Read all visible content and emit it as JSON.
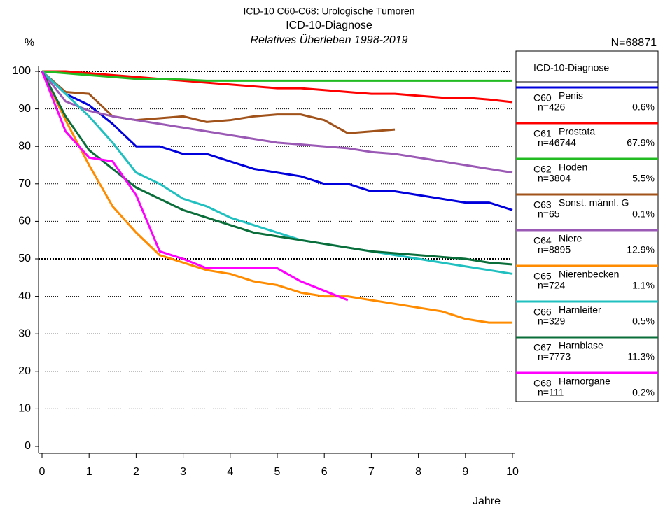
{
  "chart_data": {
    "type": "line",
    "title": "ICD-10 C60-C68: Urologische Tumoren",
    "subtitle": "ICD-10-Diagnose",
    "subtitle2": "Relatives Überleben 1998-2019",
    "ylabel": "%",
    "xlabel": "Jahre",
    "total": "N=68871",
    "legend_title": "ICD-10-Diagnose",
    "x": [
      0,
      0.5,
      1,
      1.5,
      2,
      2.5,
      3,
      3.5,
      4,
      4.5,
      5,
      5.5,
      6,
      6.5,
      7,
      7.5,
      8,
      8.5,
      9,
      9.5,
      10
    ],
    "xlim": [
      0,
      10
    ],
    "xticks": [
      0,
      1,
      2,
      3,
      4,
      5,
      6,
      7,
      8,
      9,
      10
    ],
    "ylim": [
      0,
      100
    ],
    "yticks": [
      0,
      10,
      20,
      30,
      40,
      50,
      60,
      70,
      80,
      90,
      100
    ],
    "grid": true,
    "series": [
      {
        "code": "C60",
        "name": "Penis",
        "n": "n=426",
        "share": "0.6%",
        "color": "#0000dd",
        "values": [
          100,
          94,
          91,
          86,
          80,
          80,
          78,
          78,
          76,
          74,
          73,
          72,
          70,
          70,
          68,
          68,
          67,
          66,
          65,
          65,
          63
        ]
      },
      {
        "code": "C61",
        "name": "Prostata",
        "n": "n=46744",
        "share": "67.9%",
        "color": "#ff0000",
        "values": [
          100,
          100,
          99.5,
          99,
          98.5,
          98,
          97.5,
          97,
          96.5,
          96,
          95.5,
          95.5,
          95,
          94.5,
          94,
          94,
          93.5,
          93,
          93,
          92.5,
          91.8
        ]
      },
      {
        "code": "C62",
        "name": "Hoden",
        "n": "n=3804",
        "share": "5.5%",
        "color": "#22bb22",
        "values": [
          100,
          99.5,
          99,
          98.5,
          98,
          98,
          97.8,
          97.5,
          97.5,
          97.5,
          97.5,
          97.5,
          97.5,
          97.5,
          97.5,
          97.5,
          97.5,
          97.5,
          97.5,
          97.5,
          97.5
        ]
      },
      {
        "code": "C63",
        "name": "Sonst. männl. G",
        "n": "n=65",
        "share": "0.1%",
        "color": "#a0521a",
        "values": [
          100,
          94.5,
          94,
          88,
          87,
          87.5,
          88,
          86.5,
          87,
          88,
          88.5,
          88.5,
          87,
          83.5,
          84,
          84.5,
          null,
          null,
          null,
          null,
          null
        ]
      },
      {
        "code": "C64",
        "name": "Niere",
        "n": "n=8895",
        "share": "12.9%",
        "color": "#9b59b6",
        "values": [
          100,
          92,
          89.5,
          88,
          87,
          86,
          85,
          84,
          83,
          82,
          81,
          80.5,
          80,
          79.5,
          78.5,
          78,
          77,
          76,
          75,
          74,
          73
        ]
      },
      {
        "code": "C65",
        "name": "Nierenbecken",
        "n": "n=724",
        "share": "1.1%",
        "color": "#ff8c00",
        "values": [
          100,
          87,
          75,
          64,
          57,
          51,
          49,
          47,
          46,
          44,
          43,
          41,
          40,
          40,
          39,
          38,
          37,
          36,
          34,
          33,
          33
        ]
      },
      {
        "code": "C66",
        "name": "Harnleiter",
        "n": "n=329",
        "share": "0.5%",
        "color": "#20c0c0",
        "values": [
          100,
          94,
          88,
          81,
          73,
          70,
          66,
          64,
          61,
          59,
          57,
          55,
          54,
          53,
          52,
          51,
          50,
          49,
          48,
          47,
          46
        ]
      },
      {
        "code": "C67",
        "name": "Harnblase",
        "n": "n=7773",
        "share": "11.3%",
        "color": "#0a6e3a",
        "values": [
          100,
          88,
          79,
          74,
          69,
          66,
          63,
          61,
          59,
          57,
          56,
          55,
          54,
          53,
          52,
          51.5,
          51,
          50.5,
          50,
          49,
          48.5
        ]
      },
      {
        "code": "C68",
        "name": "Harnorgane",
        "n": "n=111",
        "share": "0.2%",
        "color": "#ff00ff",
        "values": [
          100,
          84,
          77,
          76,
          67,
          52,
          50,
          47.5,
          47.5,
          47.5,
          47.5,
          44,
          41.5,
          39,
          null,
          null,
          null,
          null,
          null,
          null,
          null
        ]
      }
    ]
  }
}
